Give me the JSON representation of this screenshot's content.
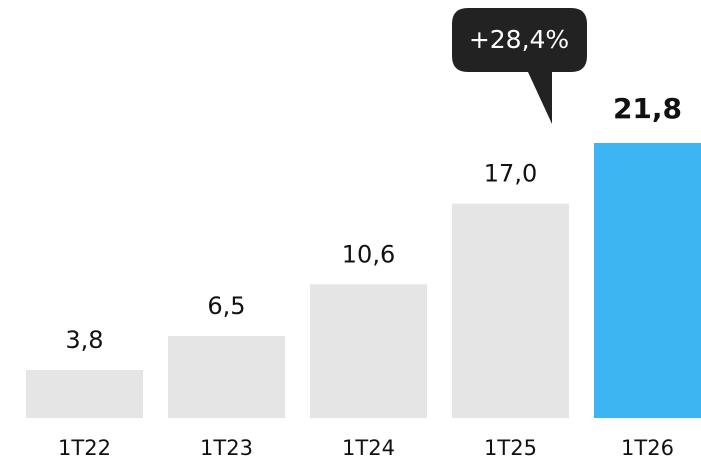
{
  "chart_data": {
    "type": "bar",
    "categories": [
      "1T22",
      "1T23",
      "1T24",
      "1T25",
      "1T26"
    ],
    "values": [
      3.8,
      6.5,
      10.6,
      17.0,
      21.8
    ],
    "value_labels": [
      "3,8",
      "6,5",
      "10,6",
      "17,0",
      "21,8"
    ],
    "colors": [
      "#e5e5e5",
      "#e5e5e5",
      "#e5e5e5",
      "#e5e5e5",
      "#3db5f2"
    ],
    "annotation": "+28,4%"
  }
}
